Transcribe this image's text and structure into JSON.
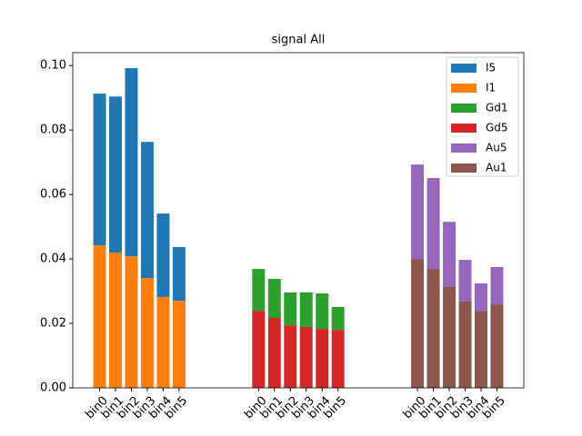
{
  "chart_data": {
    "type": "bar",
    "title": "signal All",
    "x": [
      0,
      1,
      2,
      3,
      4,
      5,
      10,
      11,
      12,
      13,
      14,
      15,
      20,
      21,
      22,
      23,
      24,
      25
    ],
    "xticks": [
      {
        "value": 0,
        "label": "bin0"
      },
      {
        "value": 1,
        "label": "bin1"
      },
      {
        "value": 2,
        "label": "bin2"
      },
      {
        "value": 3,
        "label": "bin3"
      },
      {
        "value": 4,
        "label": "bin4"
      },
      {
        "value": 5,
        "label": "bin5"
      },
      {
        "value": 10,
        "label": "bin0"
      },
      {
        "value": 11,
        "label": "bin1"
      },
      {
        "value": 12,
        "label": "bin2"
      },
      {
        "value": 13,
        "label": "bin3"
      },
      {
        "value": 14,
        "label": "bin4"
      },
      {
        "value": 15,
        "label": "bin5"
      },
      {
        "value": 20,
        "label": "bin0"
      },
      {
        "value": 21,
        "label": "bin1"
      },
      {
        "value": 22,
        "label": "bin2"
      },
      {
        "value": 23,
        "label": "bin3"
      },
      {
        "value": 24,
        "label": "bin4"
      },
      {
        "value": 25,
        "label": "bin5"
      }
    ],
    "xlim": [
      -1.69,
      26.69
    ],
    "ylim": [
      0,
      0.104
    ],
    "yticks": [
      {
        "value": 0,
        "label": "0.00"
      },
      {
        "value": 0.02,
        "label": "0.02"
      },
      {
        "value": 0.04,
        "label": "0.04"
      },
      {
        "value": 0.06,
        "label": "0.06"
      },
      {
        "value": 0.08,
        "label": "0.08"
      },
      {
        "value": 0.1,
        "label": "0.10"
      }
    ],
    "legend": "upper right",
    "series": [
      {
        "name": "I5",
        "color": "#1f77b4",
        "values": [
          0.0471,
          0.0484,
          0.0584,
          0.0422,
          0.0259,
          0.0167,
          null,
          null,
          null,
          null,
          null,
          null,
          null,
          null,
          null,
          null,
          null,
          null
        ]
      },
      {
        "name": "I1",
        "color": "#ff7f0e",
        "values": [
          0.0442,
          0.042,
          0.0408,
          0.0341,
          0.0282,
          0.027,
          null,
          null,
          null,
          null,
          null,
          null,
          null,
          null,
          null,
          null,
          null,
          null
        ]
      },
      {
        "name": "Gd1",
        "color": "#2ca02c",
        "values": [
          null,
          null,
          null,
          null,
          null,
          null,
          0.013,
          0.0121,
          0.0102,
          0.0107,
          0.011,
          0.0071,
          null,
          null,
          null,
          null,
          null,
          null
        ]
      },
      {
        "name": "Gd5",
        "color": "#d62728",
        "values": [
          null,
          null,
          null,
          null,
          null,
          null,
          0.0239,
          0.0217,
          0.0194,
          0.0189,
          0.0183,
          0.018,
          null,
          null,
          null,
          null,
          null,
          null
        ]
      },
      {
        "name": "Au5",
        "color": "#9467bd",
        "values": [
          null,
          null,
          null,
          null,
          null,
          null,
          null,
          null,
          null,
          null,
          null,
          null,
          0.0293,
          0.0282,
          0.0202,
          0.0129,
          0.0085,
          0.0116
        ]
      },
      {
        "name": "Au1",
        "color": "#8c564b",
        "values": [
          null,
          null,
          null,
          null,
          null,
          null,
          null,
          null,
          null,
          null,
          null,
          null,
          0.04,
          0.0369,
          0.0313,
          0.0268,
          0.0239,
          0.0259
        ]
      }
    ]
  }
}
